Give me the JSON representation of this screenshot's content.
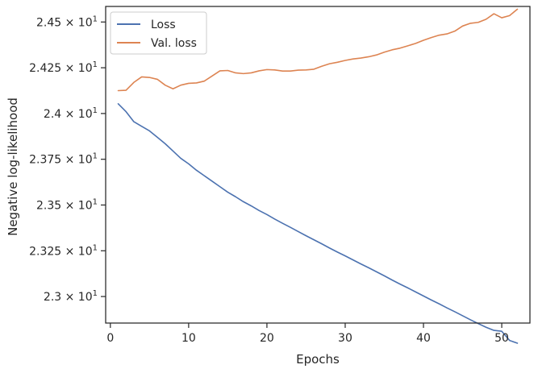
{
  "chart_data": {
    "type": "line",
    "title": "",
    "xlabel": "Epochs",
    "ylabel": "Negative log-likelihood",
    "xlim": [
      -0.6,
      53.6
    ],
    "ylim": [
      22.855,
      24.585
    ],
    "x_ticks": [
      {
        "value": 0,
        "label": "0"
      },
      {
        "value": 10,
        "label": "10"
      },
      {
        "value": 20,
        "label": "20"
      },
      {
        "value": 30,
        "label": "30"
      },
      {
        "value": 40,
        "label": "40"
      },
      {
        "value": 50,
        "label": "50"
      }
    ],
    "y_ticks": [
      {
        "value": 23.0,
        "mantissa": "2.3",
        "times": "×",
        "base": "10",
        "exp": "1"
      },
      {
        "value": 23.25,
        "mantissa": "2.325",
        "times": "×",
        "base": "10",
        "exp": "1"
      },
      {
        "value": 23.5,
        "mantissa": "2.35",
        "times": "×",
        "base": "10",
        "exp": "1"
      },
      {
        "value": 23.75,
        "mantissa": "2.375",
        "times": "×",
        "base": "10",
        "exp": "1"
      },
      {
        "value": 24.0,
        "mantissa": "2.4",
        "times": "×",
        "base": "10",
        "exp": "1"
      },
      {
        "value": 24.25,
        "mantissa": "2.425",
        "times": "×",
        "base": "10",
        "exp": "1"
      },
      {
        "value": 24.5,
        "mantissa": "2.45",
        "times": "×",
        "base": "10",
        "exp": "1"
      }
    ],
    "legend_position": "top-left",
    "grid": false,
    "x": [
      1,
      2,
      3,
      4,
      5,
      6,
      7,
      8,
      9,
      10,
      11,
      12,
      13,
      14,
      15,
      16,
      17,
      18,
      19,
      20,
      21,
      22,
      23,
      24,
      25,
      26,
      27,
      28,
      29,
      30,
      31,
      32,
      33,
      34,
      35,
      36,
      37,
      38,
      39,
      40,
      41,
      42,
      43,
      44,
      45,
      46,
      47,
      48,
      49,
      50,
      51,
      52
    ],
    "series": [
      {
        "name": "Loss",
        "color": "#4c72b0",
        "values": [
          24.053,
          24.01,
          23.955,
          23.93,
          23.905,
          23.87,
          23.835,
          23.795,
          23.755,
          23.725,
          23.69,
          23.66,
          23.63,
          23.6,
          23.57,
          23.545,
          23.518,
          23.495,
          23.47,
          23.448,
          23.423,
          23.4,
          23.378,
          23.355,
          23.332,
          23.31,
          23.288,
          23.265,
          23.243,
          23.222,
          23.2,
          23.178,
          23.157,
          23.135,
          23.113,
          23.09,
          23.068,
          23.047,
          23.025,
          23.003,
          22.981,
          22.96,
          22.938,
          22.917,
          22.895,
          22.873,
          22.852,
          22.832,
          22.815,
          22.81,
          22.76,
          22.745
        ]
      },
      {
        "name": "Val. loss",
        "color": "#dd8452",
        "values": [
          24.125,
          24.127,
          24.17,
          24.2,
          24.197,
          24.187,
          24.155,
          24.135,
          24.155,
          24.165,
          24.167,
          24.177,
          24.205,
          24.233,
          24.235,
          24.222,
          24.218,
          24.222,
          24.233,
          24.24,
          24.238,
          24.232,
          24.232,
          24.237,
          24.238,
          24.242,
          24.258,
          24.272,
          24.28,
          24.29,
          24.298,
          24.303,
          24.31,
          24.32,
          24.335,
          24.348,
          24.357,
          24.37,
          24.383,
          24.4,
          24.415,
          24.428,
          24.435,
          24.45,
          24.478,
          24.493,
          24.498,
          24.515,
          24.545,
          24.523,
          24.535,
          24.57
        ]
      }
    ]
  }
}
